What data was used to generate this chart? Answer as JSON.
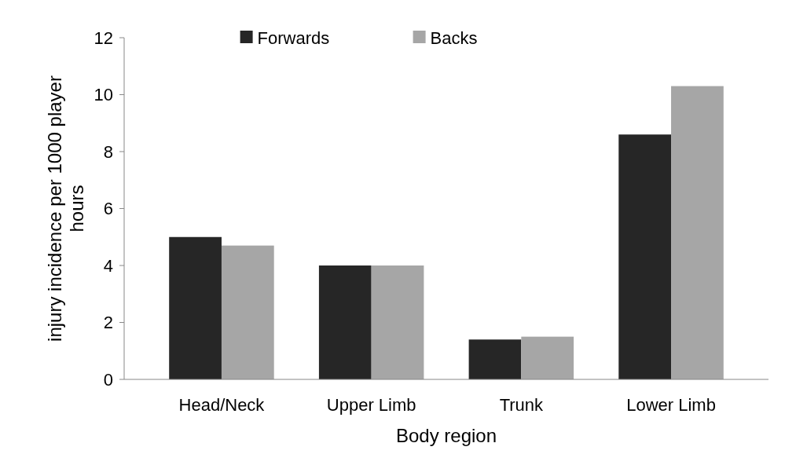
{
  "chart_data": {
    "type": "bar",
    "xlabel": "Body region",
    "ylabel": "injury incidence per 1000 player hours",
    "categories": [
      "Head/Neck",
      "Upper Limb",
      "Trunk",
      "Lower Limb"
    ],
    "series": [
      {
        "name": "Forwards",
        "color": "#262626",
        "values": [
          5.0,
          4.0,
          1.4,
          8.6
        ]
      },
      {
        "name": "Backs",
        "color": "#a6a6a6",
        "values": [
          4.7,
          4.0,
          1.5,
          10.3
        ]
      }
    ],
    "ylim": [
      0,
      12
    ],
    "yticks": [
      0,
      2,
      4,
      6,
      8,
      10,
      12
    ],
    "legend": "top"
  }
}
